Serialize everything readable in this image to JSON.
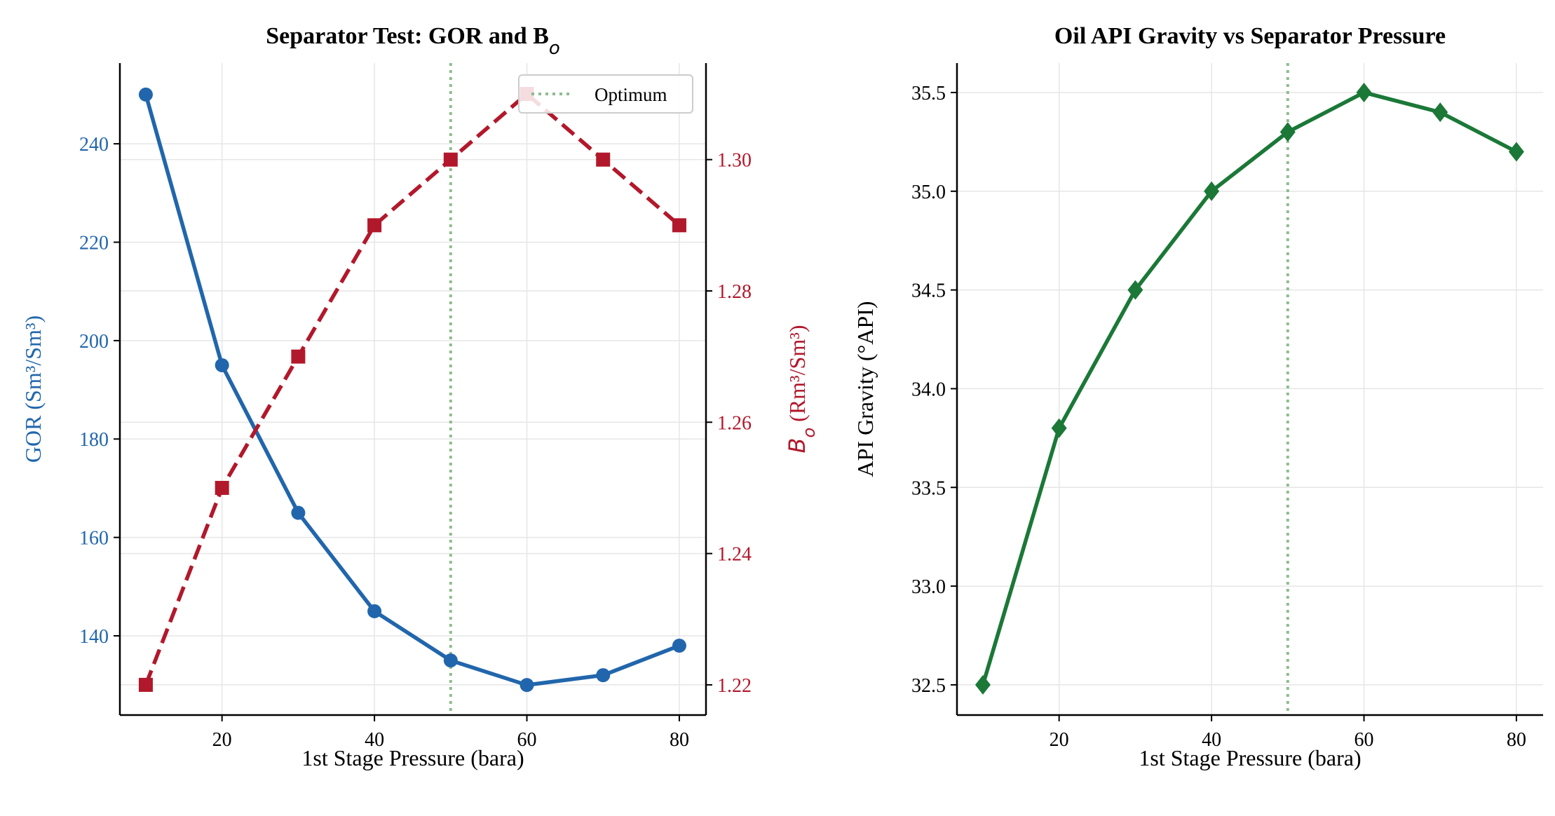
{
  "chart_data": [
    {
      "type": "line",
      "title": "Separator Test: GOR and B",
      "title_sub": "o",
      "xlabel": "1st Stage Pressure (bara)",
      "x": [
        10,
        20,
        30,
        40,
        50,
        60,
        70,
        80
      ],
      "xticks": [
        20,
        40,
        60,
        80
      ],
      "xlim": [
        6.6,
        83.5
      ],
      "grid": true,
      "series": [
        {
          "name": "GOR",
          "axis": "left",
          "color": "#2166ac",
          "marker": "circle",
          "linestyle": "solid",
          "values": [
            250,
            195,
            165,
            145,
            135,
            130,
            132,
            138
          ]
        },
        {
          "name": "Bo",
          "axis": "right",
          "color": "#b2182b",
          "marker": "square",
          "linestyle": "dashed",
          "values": [
            1.22,
            1.25,
            1.27,
            1.29,
            1.3,
            1.31,
            1.3,
            1.29
          ]
        }
      ],
      "ylabel_left": "GOR (Sm³/Sm³)",
      "ylim_left": [
        123.9,
        256.4
      ],
      "yticks_left": [
        140,
        160,
        180,
        200,
        220,
        240
      ],
      "ylabel_right_main": "B",
      "ylabel_right_sub": "o",
      "ylabel_right_rest": " (Rm³/Sm³)",
      "ylim_right": [
        1.2154,
        1.3147
      ],
      "yticks_right": [
        "1.22",
        "1.24",
        "1.26",
        "1.28",
        "1.30"
      ],
      "vline": {
        "x": 50,
        "label": "Optimum",
        "color": "#8fbc8f"
      },
      "legend": {
        "placement": "top-right",
        "entries": [
          "Optimum"
        ]
      }
    },
    {
      "type": "line",
      "title": "Oil API Gravity vs Separator Pressure",
      "xlabel": "1st Stage Pressure (bara)",
      "ylabel": "API Gravity (°API)",
      "x": [
        10,
        20,
        30,
        40,
        50,
        60,
        70,
        80
      ],
      "xticks": [
        20,
        40,
        60,
        80
      ],
      "xlim": [
        6.6,
        83.5
      ],
      "ylim": [
        32.347,
        35.649
      ],
      "yticks": [
        "32.5",
        "33.0",
        "33.5",
        "34.0",
        "34.5",
        "35.0",
        "35.5"
      ],
      "grid": true,
      "series": [
        {
          "name": "API Gravity",
          "color": "#1b7837",
          "marker": "diamond",
          "linestyle": "solid",
          "values": [
            32.5,
            33.8,
            34.5,
            35.0,
            35.3,
            35.5,
            35.4,
            35.2
          ]
        }
      ],
      "vline": {
        "x": 50,
        "color": "#8fbc8f"
      }
    }
  ]
}
